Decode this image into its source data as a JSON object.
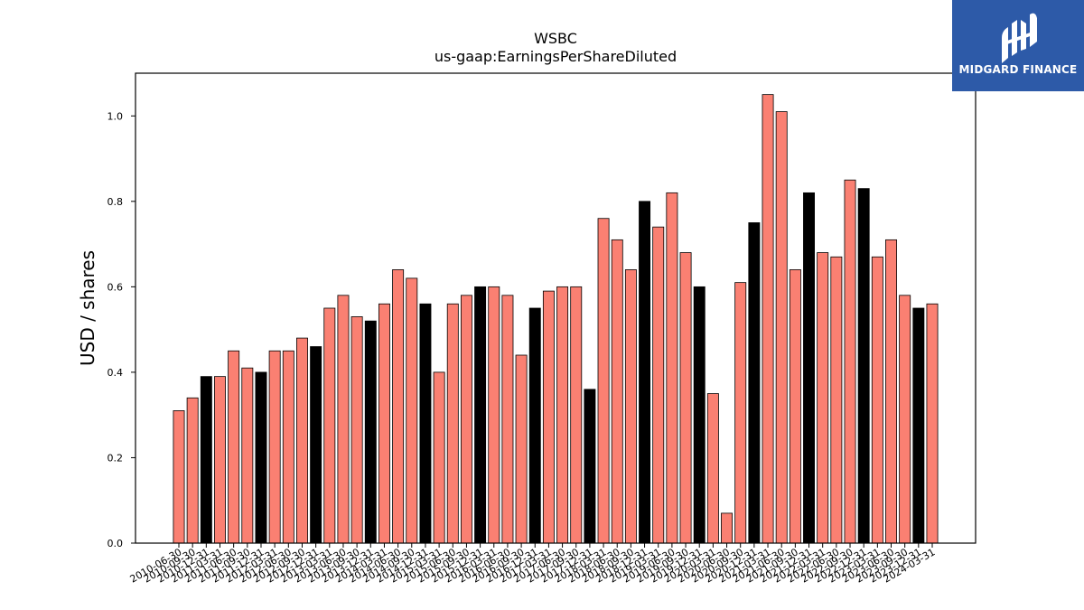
{
  "chart_data": {
    "type": "bar",
    "title": "WSBC",
    "subtitle": "us-gaap:EarningsPerShareDiluted",
    "xlabel": "",
    "ylabel": "USD / shares",
    "ylim": [
      0,
      1.1
    ],
    "yticks": [
      "0.0",
      "0.2",
      "0.4",
      "0.6",
      "0.8",
      "1.0"
    ],
    "grid": false,
    "colors": {
      "quarter": "#fa8072",
      "annual": "#000000",
      "edge": "#000000"
    },
    "categories": [
      "2010-06-30",
      "2010-09-30",
      "2010-12-31",
      "2011-03-31",
      "2011-06-30",
      "2011-09-30",
      "2011-12-31",
      "2012-03-31",
      "2012-06-30",
      "2012-09-30",
      "2012-12-31",
      "2013-03-31",
      "2013-06-30",
      "2013-09-30",
      "2013-12-31",
      "2014-03-31",
      "2014-06-30",
      "2014-09-30",
      "2014-12-31",
      "2015-03-31",
      "2015-06-30",
      "2015-09-30",
      "2015-12-31",
      "2016-03-31",
      "2016-06-30",
      "2016-09-30",
      "2016-12-31",
      "2017-03-31",
      "2017-06-30",
      "2017-09-30",
      "2017-12-31",
      "2018-03-31",
      "2018-06-30",
      "2018-09-30",
      "2018-12-31",
      "2019-03-31",
      "2019-06-30",
      "2019-09-30",
      "2019-12-31",
      "2020-03-31",
      "2020-06-30",
      "2020-09-30",
      "2020-12-31",
      "2021-03-31",
      "2021-06-30",
      "2021-09-30",
      "2021-12-31",
      "2022-03-31",
      "2022-06-30",
      "2022-09-30",
      "2022-12-31",
      "2023-03-31",
      "2023-06-30",
      "2023-09-30",
      "2023-12-31",
      "2024-03-31"
    ],
    "values": [
      0.31,
      0.34,
      0.39,
      0.39,
      0.45,
      0.41,
      0.4,
      0.45,
      0.45,
      0.48,
      0.46,
      0.55,
      0.58,
      0.53,
      0.52,
      0.56,
      0.64,
      0.62,
      0.56,
      0.4,
      0.56,
      0.58,
      0.6,
      0.6,
      0.58,
      0.44,
      0.55,
      0.59,
      0.6,
      0.6,
      0.36,
      0.76,
      0.71,
      0.64,
      0.8,
      0.74,
      0.82,
      0.68,
      0.6,
      0.35,
      0.07,
      0.61,
      0.75,
      1.05,
      1.01,
      0.64,
      0.82,
      0.68,
      0.67,
      0.85,
      0.83,
      0.67,
      0.71,
      0.58,
      0.55,
      0.56
    ],
    "bar_kind": [
      "q",
      "q",
      "a",
      "q",
      "q",
      "q",
      "a",
      "q",
      "q",
      "q",
      "a",
      "q",
      "q",
      "q",
      "a",
      "q",
      "q",
      "q",
      "a",
      "q",
      "q",
      "q",
      "a",
      "q",
      "q",
      "q",
      "a",
      "q",
      "q",
      "q",
      "a",
      "q",
      "q",
      "q",
      "a",
      "q",
      "q",
      "q",
      "a",
      "q",
      "q",
      "q",
      "a",
      "q",
      "q",
      "q",
      "a",
      "q",
      "q",
      "q",
      "a",
      "q",
      "q",
      "q",
      "a",
      "q"
    ]
  },
  "logo": {
    "text": "MIDGARD FINANCE",
    "background": "#2d5aa8"
  }
}
